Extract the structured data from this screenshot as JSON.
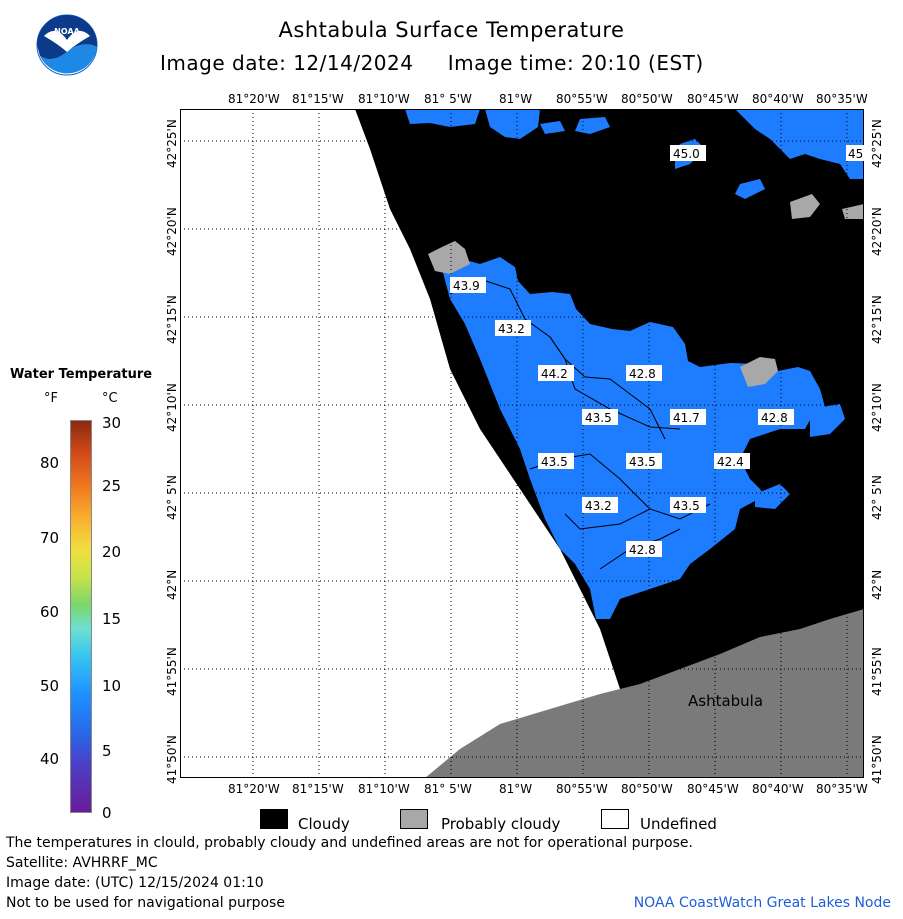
{
  "title": "Ashtabula Surface Temperature",
  "image_date_label": "Image date: 12/14/2024",
  "image_time_label": "Image time: 20:10 (EST)",
  "logo_text": "NOAA",
  "map": {
    "lon_ticks": [
      "81°20'W",
      "81°15'W",
      "81°10'W",
      "81° 5'W",
      "81°W",
      "80°55'W",
      "80°50'W",
      "80°45'W",
      "80°40'W",
      "80°35'W"
    ],
    "lat_ticks": [
      "42°25'N",
      "42°20'N",
      "42°15'N",
      "42°10'N",
      "42° 5'N",
      "42°N",
      "41°55'N",
      "41°50'N"
    ],
    "place_label": "Ashtabula",
    "temperature_labels": [
      "45.0",
      "45",
      "43.9",
      "43.2",
      "44.2",
      "42.8",
      "43.5",
      "41.7",
      "42.8",
      "43.5",
      "43.5",
      "42.4",
      "43.2",
      "43.5",
      "42.8"
    ],
    "colors": {
      "water": "#1e7cff",
      "cloud": "#000000",
      "probably_cloudy": "#a8a8a8",
      "land": "#7a7a7a",
      "undefined": "#ffffff"
    }
  },
  "colorbar": {
    "title": "Water Temperature",
    "unit_f": "°F",
    "unit_c": "°C",
    "f_labels": [
      "80",
      "70",
      "60",
      "50",
      "40"
    ],
    "c_labels": [
      "30",
      "25",
      "20",
      "15",
      "10",
      "5",
      "0"
    ]
  },
  "legend": {
    "cloudy": "Cloudy",
    "probably_cloudy": "Probably cloudy",
    "undefined": "Undefined"
  },
  "footer": {
    "warning": "The temperatures in clould, probably cloudy and undefined areas are not for operational purpose.",
    "satellite": "Satellite: AVHRRF_MC",
    "utc_date": "Image date: (UTC) 12/15/2024  01:10",
    "nav_warning": "Not to be used for navigational purpose",
    "credit": "NOAA CoastWatch Great Lakes Node"
  }
}
